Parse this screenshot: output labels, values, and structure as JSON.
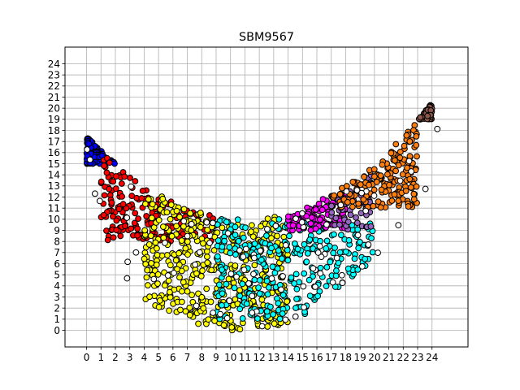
{
  "chart_data": {
    "type": "scatter",
    "title": "SBM9567",
    "xlabel": "",
    "ylabel": "",
    "xlim": [
      -1.5,
      26.5
    ],
    "ylim": [
      -1.5,
      25.5
    ],
    "xticks": [
      "0",
      "1",
      "2",
      "3",
      "4",
      "5",
      "6",
      "7",
      "8",
      "9",
      "10",
      "11",
      "12",
      "13",
      "14",
      "15",
      "16",
      "17",
      "18",
      "19",
      "20",
      "21",
      "22",
      "23",
      "24"
    ],
    "yticks": [
      "0",
      "1",
      "2",
      "3",
      "4",
      "5",
      "6",
      "7",
      "8",
      "9",
      "10",
      "11",
      "12",
      "13",
      "14",
      "15",
      "16",
      "17",
      "18",
      "19",
      "20",
      "21",
      "22",
      "23",
      "24"
    ],
    "grid": true,
    "legend": "none",
    "marker_edge_color": "#000000",
    "clusters": [
      {
        "color": "#0000ff",
        "x": [
          0,
          4
        ],
        "y": [
          15,
          22
        ],
        "n": 140
      },
      {
        "color": "#ff0000",
        "x": [
          1,
          9
        ],
        "y": [
          8,
          16
        ],
        "n": 170
      },
      {
        "color": "#ffff00",
        "x": [
          4,
          14
        ],
        "y": [
          0,
          13
        ],
        "n": 460
      },
      {
        "color": "#00ffff",
        "x": [
          9,
          20
        ],
        "y": [
          1,
          10
        ],
        "n": 300
      },
      {
        "color": "#ff00ff",
        "x": [
          14,
          18
        ],
        "y": [
          9,
          13
        ],
        "n": 110
      },
      {
        "color": "#9467bd",
        "x": [
          17,
          20
        ],
        "y": [
          9,
          14
        ],
        "n": 60
      },
      {
        "color": "#ff7f0e",
        "x": [
          17,
          23
        ],
        "y": [
          11,
          20
        ],
        "n": 170
      },
      {
        "color": "#8c564b",
        "x": [
          19,
          24
        ],
        "y": [
          19,
          25
        ],
        "n": 70
      },
      {
        "color": "#ffffff",
        "x": [
          0,
          25
        ],
        "y": [
          0,
          25
        ],
        "n": 90
      }
    ]
  }
}
